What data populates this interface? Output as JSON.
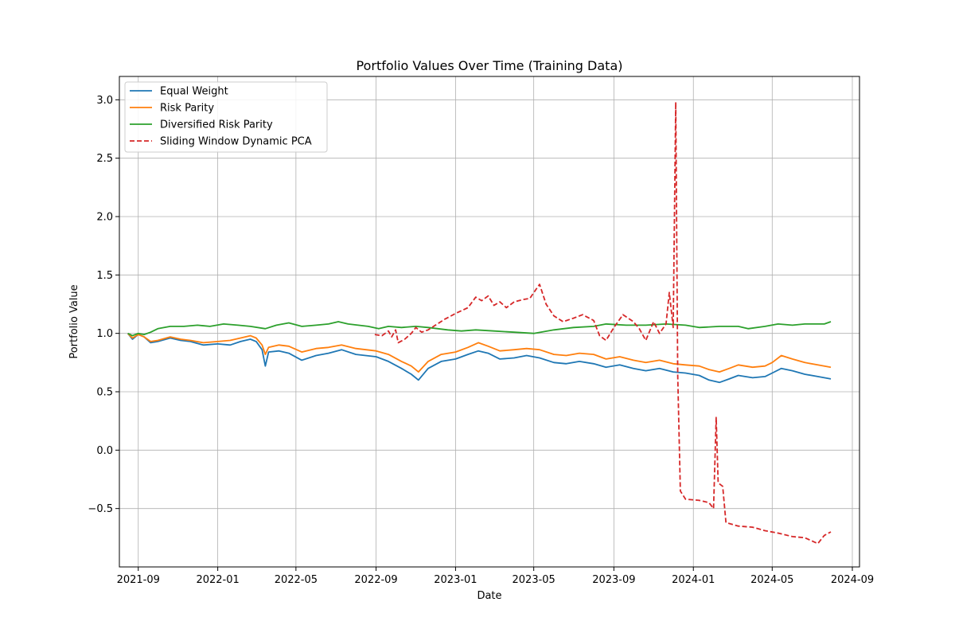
{
  "chart_data": {
    "type": "line",
    "title": "Portfolio Values Over Time (Training Data)",
    "xlabel": "Date",
    "ylabel": "Portfolio Value",
    "xlim": [
      "2021-08-03",
      "2024-09-12"
    ],
    "ylim": [
      -1.0,
      3.2
    ],
    "x_ticks": [
      "2021-09",
      "2022-01",
      "2022-05",
      "2022-09",
      "2023-01",
      "2023-05",
      "2023-09",
      "2024-01",
      "2024-05",
      "2024-09"
    ],
    "y_ticks": [
      -0.5,
      0.0,
      0.5,
      1.0,
      1.5,
      2.0,
      2.5,
      3.0
    ],
    "y_tick_labels": [
      "−0.5",
      "0.0",
      "0.5",
      "1.0",
      "1.5",
      "2.0",
      "2.5",
      "3.0"
    ],
    "grid": true,
    "legend_position": "top-left",
    "series": [
      {
        "name": "Equal Weight",
        "color": "#1f77b4",
        "style": "solid",
        "points": [
          [
            "2021-08-16",
            1.0
          ],
          [
            "2021-08-23",
            0.95
          ],
          [
            "2021-09-01",
            0.99
          ],
          [
            "2021-09-10",
            0.97
          ],
          [
            "2021-09-20",
            0.92
          ],
          [
            "2021-10-01",
            0.93
          ],
          [
            "2021-10-20",
            0.96
          ],
          [
            "2021-11-05",
            0.94
          ],
          [
            "2021-11-20",
            0.93
          ],
          [
            "2021-12-10",
            0.9
          ],
          [
            "2022-01-01",
            0.91
          ],
          [
            "2022-01-20",
            0.9
          ],
          [
            "2022-02-05",
            0.93
          ],
          [
            "2022-02-20",
            0.95
          ],
          [
            "2022-03-01",
            0.93
          ],
          [
            "2022-03-10",
            0.86
          ],
          [
            "2022-03-15",
            0.72
          ],
          [
            "2022-03-20",
            0.84
          ],
          [
            "2022-04-05",
            0.85
          ],
          [
            "2022-04-20",
            0.83
          ],
          [
            "2022-05-10",
            0.77
          ],
          [
            "2022-06-01",
            0.81
          ],
          [
            "2022-06-20",
            0.83
          ],
          [
            "2022-07-10",
            0.86
          ],
          [
            "2022-08-01",
            0.82
          ],
          [
            "2022-09-01",
            0.8
          ],
          [
            "2022-09-20",
            0.76
          ],
          [
            "2022-10-10",
            0.7
          ],
          [
            "2022-10-25",
            0.65
          ],
          [
            "2022-11-05",
            0.6
          ],
          [
            "2022-11-20",
            0.7
          ],
          [
            "2022-12-10",
            0.76
          ],
          [
            "2023-01-01",
            0.78
          ],
          [
            "2023-01-20",
            0.82
          ],
          [
            "2023-02-05",
            0.85
          ],
          [
            "2023-02-20",
            0.83
          ],
          [
            "2023-03-10",
            0.78
          ],
          [
            "2023-04-01",
            0.79
          ],
          [
            "2023-04-20",
            0.81
          ],
          [
            "2023-05-10",
            0.79
          ],
          [
            "2023-06-01",
            0.75
          ],
          [
            "2023-06-20",
            0.74
          ],
          [
            "2023-07-10",
            0.76
          ],
          [
            "2023-08-01",
            0.74
          ],
          [
            "2023-08-20",
            0.71
          ],
          [
            "2023-09-10",
            0.73
          ],
          [
            "2023-10-01",
            0.7
          ],
          [
            "2023-10-20",
            0.68
          ],
          [
            "2023-11-10",
            0.7
          ],
          [
            "2023-12-01",
            0.67
          ],
          [
            "2023-12-20",
            0.66
          ],
          [
            "2024-01-10",
            0.64
          ],
          [
            "2024-01-25",
            0.6
          ],
          [
            "2024-02-10",
            0.58
          ],
          [
            "2024-02-25",
            0.61
          ],
          [
            "2024-03-10",
            0.64
          ],
          [
            "2024-04-01",
            0.62
          ],
          [
            "2024-04-20",
            0.63
          ],
          [
            "2024-05-01",
            0.66
          ],
          [
            "2024-05-15",
            0.7
          ],
          [
            "2024-06-01",
            0.68
          ],
          [
            "2024-06-20",
            0.65
          ],
          [
            "2024-07-10",
            0.63
          ],
          [
            "2024-07-30",
            0.61
          ]
        ]
      },
      {
        "name": "Risk Parity",
        "color": "#ff7f0e",
        "style": "solid",
        "points": [
          [
            "2021-08-16",
            1.0
          ],
          [
            "2021-08-23",
            0.96
          ],
          [
            "2021-09-01",
            0.99
          ],
          [
            "2021-09-10",
            0.97
          ],
          [
            "2021-09-20",
            0.93
          ],
          [
            "2021-10-01",
            0.94
          ],
          [
            "2021-10-20",
            0.97
          ],
          [
            "2021-11-05",
            0.95
          ],
          [
            "2021-11-20",
            0.94
          ],
          [
            "2021-12-10",
            0.92
          ],
          [
            "2022-01-01",
            0.93
          ],
          [
            "2022-01-20",
            0.94
          ],
          [
            "2022-02-05",
            0.96
          ],
          [
            "2022-02-20",
            0.98
          ],
          [
            "2022-03-01",
            0.96
          ],
          [
            "2022-03-10",
            0.9
          ],
          [
            "2022-03-15",
            0.82
          ],
          [
            "2022-03-20",
            0.88
          ],
          [
            "2022-04-05",
            0.9
          ],
          [
            "2022-04-20",
            0.89
          ],
          [
            "2022-05-10",
            0.84
          ],
          [
            "2022-06-01",
            0.87
          ],
          [
            "2022-06-20",
            0.88
          ],
          [
            "2022-07-10",
            0.9
          ],
          [
            "2022-08-01",
            0.87
          ],
          [
            "2022-09-01",
            0.85
          ],
          [
            "2022-09-20",
            0.82
          ],
          [
            "2022-10-10",
            0.76
          ],
          [
            "2022-10-25",
            0.72
          ],
          [
            "2022-11-05",
            0.67
          ],
          [
            "2022-11-20",
            0.76
          ],
          [
            "2022-12-10",
            0.82
          ],
          [
            "2023-01-01",
            0.84
          ],
          [
            "2023-01-20",
            0.88
          ],
          [
            "2023-02-05",
            0.92
          ],
          [
            "2023-02-20",
            0.89
          ],
          [
            "2023-03-10",
            0.85
          ],
          [
            "2023-04-01",
            0.86
          ],
          [
            "2023-04-20",
            0.87
          ],
          [
            "2023-05-10",
            0.86
          ],
          [
            "2023-06-01",
            0.82
          ],
          [
            "2023-06-20",
            0.81
          ],
          [
            "2023-07-10",
            0.83
          ],
          [
            "2023-08-01",
            0.82
          ],
          [
            "2023-08-20",
            0.78
          ],
          [
            "2023-09-10",
            0.8
          ],
          [
            "2023-10-01",
            0.77
          ],
          [
            "2023-10-20",
            0.75
          ],
          [
            "2023-11-10",
            0.77
          ],
          [
            "2023-12-01",
            0.74
          ],
          [
            "2023-12-20",
            0.73
          ],
          [
            "2024-01-10",
            0.72
          ],
          [
            "2024-01-25",
            0.69
          ],
          [
            "2024-02-10",
            0.67
          ],
          [
            "2024-02-25",
            0.7
          ],
          [
            "2024-03-10",
            0.73
          ],
          [
            "2024-04-01",
            0.71
          ],
          [
            "2024-04-20",
            0.72
          ],
          [
            "2024-05-01",
            0.75
          ],
          [
            "2024-05-15",
            0.81
          ],
          [
            "2024-06-01",
            0.78
          ],
          [
            "2024-06-20",
            0.75
          ],
          [
            "2024-07-10",
            0.73
          ],
          [
            "2024-07-30",
            0.71
          ]
        ]
      },
      {
        "name": "Diversified Risk Parity",
        "color": "#2ca02c",
        "style": "solid",
        "points": [
          [
            "2021-08-16",
            1.0
          ],
          [
            "2021-08-23",
            0.98
          ],
          [
            "2021-09-01",
            1.0
          ],
          [
            "2021-09-10",
            0.99
          ],
          [
            "2021-09-20",
            1.01
          ],
          [
            "2021-10-01",
            1.04
          ],
          [
            "2021-10-20",
            1.06
          ],
          [
            "2021-11-10",
            1.06
          ],
          [
            "2021-12-01",
            1.07
          ],
          [
            "2021-12-20",
            1.06
          ],
          [
            "2022-01-10",
            1.08
          ],
          [
            "2022-02-01",
            1.07
          ],
          [
            "2022-02-20",
            1.06
          ],
          [
            "2022-03-15",
            1.04
          ],
          [
            "2022-04-01",
            1.07
          ],
          [
            "2022-04-20",
            1.09
          ],
          [
            "2022-05-10",
            1.06
          ],
          [
            "2022-06-01",
            1.07
          ],
          [
            "2022-06-20",
            1.08
          ],
          [
            "2022-07-05",
            1.1
          ],
          [
            "2022-07-20",
            1.08
          ],
          [
            "2022-08-20",
            1.06
          ],
          [
            "2022-09-05",
            1.04
          ],
          [
            "2022-09-20",
            1.06
          ],
          [
            "2022-10-10",
            1.05
          ],
          [
            "2022-11-01",
            1.06
          ],
          [
            "2022-11-20",
            1.05
          ],
          [
            "2022-12-20",
            1.03
          ],
          [
            "2023-01-10",
            1.02
          ],
          [
            "2023-02-01",
            1.03
          ],
          [
            "2023-03-01",
            1.02
          ],
          [
            "2023-04-01",
            1.01
          ],
          [
            "2023-05-01",
            1.0
          ],
          [
            "2023-06-01",
            1.03
          ],
          [
            "2023-07-01",
            1.05
          ],
          [
            "2023-08-01",
            1.06
          ],
          [
            "2023-08-20",
            1.08
          ],
          [
            "2023-09-20",
            1.07
          ],
          [
            "2023-10-20",
            1.07
          ],
          [
            "2023-11-20",
            1.08
          ],
          [
            "2023-12-20",
            1.07
          ],
          [
            "2024-01-10",
            1.05
          ],
          [
            "2024-02-10",
            1.06
          ],
          [
            "2024-03-10",
            1.06
          ],
          [
            "2024-03-25",
            1.04
          ],
          [
            "2024-04-20",
            1.06
          ],
          [
            "2024-05-10",
            1.08
          ],
          [
            "2024-06-01",
            1.07
          ],
          [
            "2024-06-20",
            1.08
          ],
          [
            "2024-07-20",
            1.08
          ],
          [
            "2024-07-30",
            1.1
          ]
        ]
      },
      {
        "name": "Sliding Window Dynamic PCA",
        "color": "#d62728",
        "style": "dashed",
        "points": [
          [
            "2022-08-30",
            0.99
          ],
          [
            "2022-09-10",
            0.98
          ],
          [
            "2022-09-20",
            1.02
          ],
          [
            "2022-09-25",
            0.97
          ],
          [
            "2022-10-01",
            1.03
          ],
          [
            "2022-10-05",
            0.92
          ],
          [
            "2022-10-15",
            0.95
          ],
          [
            "2022-10-25",
            1.0
          ],
          [
            "2022-11-01",
            1.05
          ],
          [
            "2022-11-10",
            1.01
          ],
          [
            "2022-11-20",
            1.03
          ],
          [
            "2022-12-01",
            1.07
          ],
          [
            "2022-12-15",
            1.12
          ],
          [
            "2023-01-01",
            1.17
          ],
          [
            "2023-01-20",
            1.22
          ],
          [
            "2023-02-01",
            1.31
          ],
          [
            "2023-02-10",
            1.28
          ],
          [
            "2023-02-20",
            1.32
          ],
          [
            "2023-03-01",
            1.24
          ],
          [
            "2023-03-10",
            1.27
          ],
          [
            "2023-03-20",
            1.22
          ],
          [
            "2023-04-01",
            1.27
          ],
          [
            "2023-04-15",
            1.29
          ],
          [
            "2023-04-25",
            1.3
          ],
          [
            "2023-05-05",
            1.38
          ],
          [
            "2023-05-10",
            1.42
          ],
          [
            "2023-05-20",
            1.25
          ],
          [
            "2023-06-01",
            1.15
          ],
          [
            "2023-06-15",
            1.1
          ],
          [
            "2023-07-01",
            1.13
          ],
          [
            "2023-07-15",
            1.16
          ],
          [
            "2023-08-01",
            1.11
          ],
          [
            "2023-08-10",
            0.98
          ],
          [
            "2023-08-20",
            0.94
          ],
          [
            "2023-09-01",
            1.05
          ],
          [
            "2023-09-15",
            1.16
          ],
          [
            "2023-10-01",
            1.1
          ],
          [
            "2023-10-10",
            1.04
          ],
          [
            "2023-10-20",
            0.94
          ],
          [
            "2023-11-01",
            1.1
          ],
          [
            "2023-11-10",
            1.0
          ],
          [
            "2023-11-20",
            1.08
          ],
          [
            "2023-11-25",
            1.35
          ],
          [
            "2023-12-01",
            1.05
          ],
          [
            "2023-12-05",
            2.98
          ],
          [
            "2023-12-08",
            0.64
          ],
          [
            "2023-12-12",
            -0.35
          ],
          [
            "2023-12-20",
            -0.42
          ],
          [
            "2024-01-10",
            -0.43
          ],
          [
            "2024-01-25",
            -0.45
          ],
          [
            "2024-02-01",
            -0.5
          ],
          [
            "2024-02-05",
            0.28
          ],
          [
            "2024-02-08",
            -0.28
          ],
          [
            "2024-02-15",
            -0.31
          ],
          [
            "2024-02-20",
            -0.62
          ],
          [
            "2024-03-10",
            -0.65
          ],
          [
            "2024-04-01",
            -0.66
          ],
          [
            "2024-04-20",
            -0.69
          ],
          [
            "2024-05-10",
            -0.71
          ],
          [
            "2024-06-01",
            -0.74
          ],
          [
            "2024-06-20",
            -0.75
          ],
          [
            "2024-07-10",
            -0.8
          ],
          [
            "2024-07-20",
            -0.73
          ],
          [
            "2024-07-30",
            -0.7
          ]
        ]
      }
    ]
  }
}
